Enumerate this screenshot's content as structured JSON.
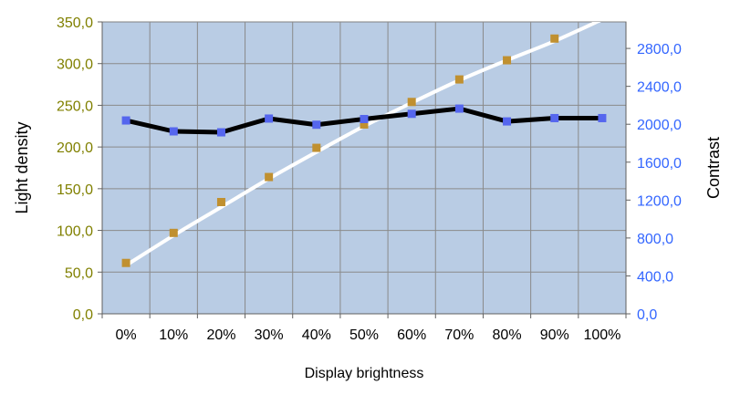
{
  "chart_data": {
    "type": "line",
    "title": "",
    "xlabel": "Display brightness",
    "ylabel_left": "Light density",
    "ylabel_right": "Contrast",
    "categories": [
      "0%",
      "10%",
      "20%",
      "30%",
      "40%",
      "50%",
      "60%",
      "70%",
      "80%",
      "90%",
      "100%"
    ],
    "y_left": {
      "range": [
        0,
        350
      ],
      "ticks": [
        "0,0",
        "50,0",
        "100,0",
        "150,0",
        "200,0",
        "250,0",
        "300,0",
        "350,0"
      ],
      "tick_values": [
        0,
        50,
        100,
        150,
        200,
        250,
        300,
        350
      ],
      "tick_color": "#808000"
    },
    "y_right": {
      "range": [
        0,
        3080
      ],
      "ticks": [
        "0,0",
        "400,0",
        "800,0",
        "1200,0",
        "1600,0",
        "2000,0",
        "2400,0",
        "2800,0"
      ],
      "tick_values": [
        0,
        400,
        800,
        1200,
        1600,
        2000,
        2400,
        2800
      ],
      "tick_color": "#3366ff"
    },
    "series": [
      {
        "axis": "left",
        "style": "markers",
        "marker_color": "#c09030",
        "values": [
          61,
          97,
          134,
          164,
          199,
          227,
          254,
          281,
          304,
          330,
          null
        ]
      },
      {
        "axis": "left",
        "style": "smooth-line",
        "line_color": "#ffffff",
        "values": [
          58,
          94,
          128,
          162,
          194,
          225,
          253,
          280,
          304,
          327,
          353
        ]
      },
      {
        "axis": "right",
        "style": "line-markers",
        "line_color": "#000000",
        "marker_color": "#5566ee",
        "values": [
          2040,
          1925,
          1915,
          2060,
          1995,
          2055,
          2110,
          2165,
          2030,
          2065,
          2065
        ]
      }
    ],
    "grid": true,
    "plot_background": "#b9cce4",
    "legend": "none"
  }
}
